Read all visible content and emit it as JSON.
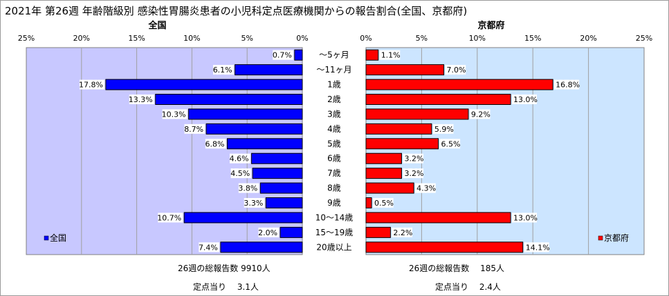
{
  "chart_data": {
    "type": "bar",
    "orientation": "horizontal",
    "layout": "butterfly",
    "title": "2021年 第26週 年齢階級別 感染性胃腸炎患者の小児科定点医療機関からの報告割合(全国、京都府)",
    "categories": [
      "～5ヶ月",
      "～11ヶ月",
      "1歳",
      "2歳",
      "3歳",
      "4歳",
      "5歳",
      "6歳",
      "7歳",
      "8歳",
      "9歳",
      "10～14歳",
      "15～19歳",
      "20歳以上"
    ],
    "xlim": [
      0,
      25
    ],
    "ticks": [
      "25%",
      "20%",
      "15%",
      "10%",
      "5%",
      "0%"
    ],
    "ticks_right": [
      "0%",
      "5%",
      "10%",
      "15%",
      "20%",
      "25%"
    ],
    "grid": true,
    "series": [
      {
        "name": "全国",
        "panel_title": "全国",
        "side": "left",
        "color": "#0000ff",
        "bg": "#c8c8ff",
        "values": [
          0.7,
          6.1,
          17.8,
          13.3,
          10.3,
          8.7,
          6.8,
          4.6,
          4.5,
          3.8,
          3.3,
          10.7,
          2.0,
          7.4
        ],
        "labels": [
          "0.7%",
          "6.1%",
          "17.8%",
          "13.3%",
          "10.3%",
          "8.7%",
          "6.8%",
          "4.6%",
          "4.5%",
          "3.8%",
          "3.3%",
          "10.7%",
          "2.0%",
          "7.4%"
        ],
        "legend": "全国",
        "total_text": "26週の総報告数 9910人",
        "per_site_text": "定点当り　 3.1人"
      },
      {
        "name": "京都府",
        "panel_title": "京都府",
        "side": "right",
        "color": "#ff0000",
        "bg": "#cce5ff",
        "values": [
          1.1,
          7.0,
          16.8,
          13.0,
          9.2,
          5.9,
          6.5,
          3.2,
          3.2,
          4.3,
          0.5,
          13.0,
          2.2,
          14.1
        ],
        "labels": [
          "1.1%",
          "7.0%",
          "16.8%",
          "13.0%",
          "9.2%",
          "5.9%",
          "6.5%",
          "3.2%",
          "3.2%",
          "4.3%",
          "0.5%",
          "13.0%",
          "2.2%",
          "14.1%"
        ],
        "legend": "京都府",
        "total_text": "26週の総報告数　 185人",
        "per_site_text": "定点当り　 2.4人"
      }
    ]
  }
}
